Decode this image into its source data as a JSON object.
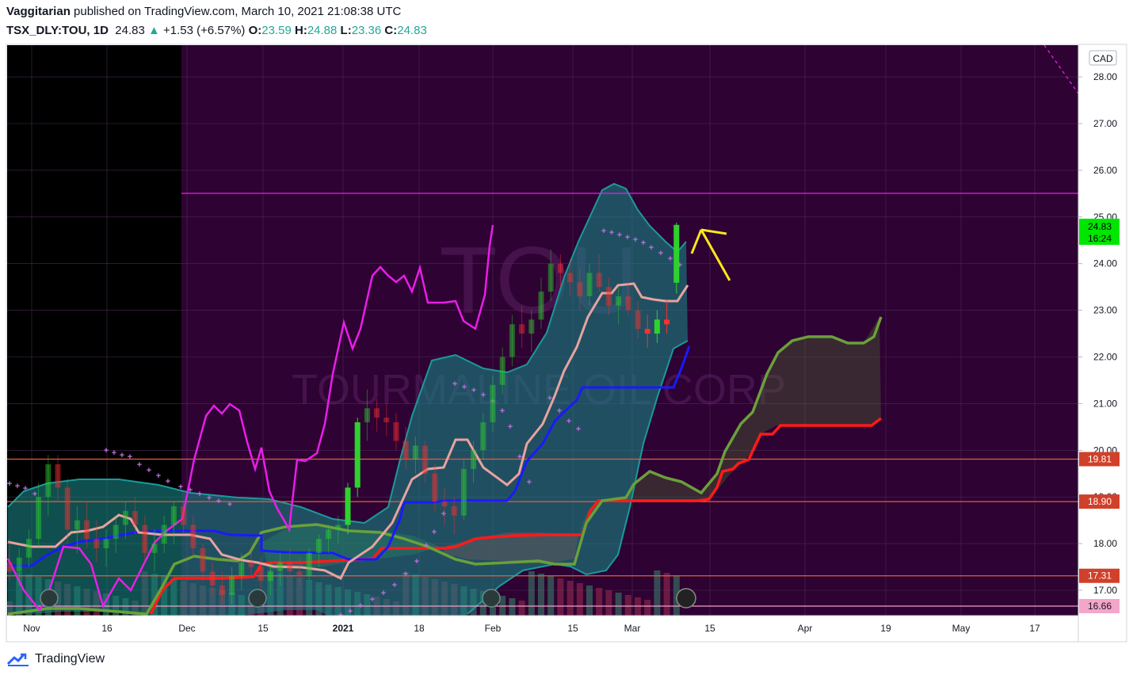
{
  "header": {
    "author": "Vaggitarian",
    "published_text": "published on TradingView.com, March 10, 2021 21:08:38 UTC",
    "symbol": "TSX_DLY:TOU, 1D",
    "last": "24.83",
    "change_arrow": "▲",
    "change": "+1.53 (+6.57%)",
    "open_label": "O:",
    "open": "23.59",
    "high_label": "H:",
    "high": "24.88",
    "low_label": "L:",
    "low": "23.36",
    "close_label": "C:",
    "close": "24.83"
  },
  "footer": {
    "brand": "TradingView"
  },
  "watermark": {
    "ticker": "TOU",
    "name": "TOURMALINE OIL CORP"
  },
  "colors": {
    "background_left": "#000000",
    "background_main": "#2e0233",
    "cloud_teal": "#1a7f80",
    "tenkan_pink": "#e8a39f",
    "kijun_blue": "#1a1aff",
    "chikou_magenta": "#e81ee8",
    "span_a_green": "#6aa03a",
    "span_b_red": "#ff1a1a",
    "psar": "#c070e0",
    "up_candle": "#2ed22e",
    "down_candle": "#ff3030",
    "annotation_arrow": "#ffe81a"
  },
  "chart_data": {
    "type": "candlestick",
    "currency": "CAD",
    "x_ticks": [
      "Nov",
      "16",
      "Dec",
      "15",
      "2021",
      "18",
      "Feb",
      "15",
      "Mar",
      "15",
      "Apr",
      "19",
      "May",
      "17"
    ],
    "y_ticks": [
      "17.00",
      "18.00",
      "19.00",
      "20.00",
      "21.00",
      "22.00",
      "23.00",
      "24.00",
      "25.00",
      "26.00",
      "27.00",
      "28.00"
    ],
    "ylim": [
      16.55,
      28.75
    ],
    "price_badge": {
      "price": "24.83",
      "countdown": "16:24"
    },
    "horizontal_levels": [
      {
        "label": "19.81",
        "value": 19.81
      },
      {
        "label": "18.90",
        "value": 18.9
      },
      {
        "label": "17.31",
        "value": 17.31
      },
      {
        "label": "16.66",
        "value": 16.66
      }
    ],
    "resistance_line": 25.5,
    "candles": [
      {
        "d": 0,
        "o": 17.6,
        "h": 18.1,
        "l": 17.2,
        "c": 17.4
      },
      {
        "d": 1,
        "o": 17.4,
        "h": 17.9,
        "l": 17.1,
        "c": 17.7
      },
      {
        "d": 2,
        "o": 17.7,
        "h": 18.3,
        "l": 17.5,
        "c": 18.1
      },
      {
        "d": 3,
        "o": 18.1,
        "h": 19.3,
        "l": 17.9,
        "c": 19.0
      },
      {
        "d": 4,
        "o": 19.0,
        "h": 19.9,
        "l": 18.6,
        "c": 19.7
      },
      {
        "d": 5,
        "o": 19.7,
        "h": 19.9,
        "l": 18.9,
        "c": 19.2
      },
      {
        "d": 6,
        "o": 19.2,
        "h": 19.4,
        "l": 18.0,
        "c": 18.3
      },
      {
        "d": 7,
        "o": 18.3,
        "h": 18.8,
        "l": 17.8,
        "c": 18.5
      },
      {
        "d": 8,
        "o": 18.5,
        "h": 18.9,
        "l": 17.9,
        "c": 18.1
      },
      {
        "d": 9,
        "o": 18.1,
        "h": 18.5,
        "l": 17.6,
        "c": 17.9
      },
      {
        "d": 10,
        "o": 17.9,
        "h": 18.3,
        "l": 17.5,
        "c": 18.1
      },
      {
        "d": 11,
        "o": 18.1,
        "h": 18.6,
        "l": 17.8,
        "c": 18.4
      },
      {
        "d": 12,
        "o": 18.4,
        "h": 18.9,
        "l": 18.1,
        "c": 18.7
      },
      {
        "d": 13,
        "o": 18.7,
        "h": 19.0,
        "l": 18.2,
        "c": 18.4
      },
      {
        "d": 14,
        "o": 18.4,
        "h": 18.6,
        "l": 17.6,
        "c": 17.8
      },
      {
        "d": 15,
        "o": 17.8,
        "h": 18.3,
        "l": 17.4,
        "c": 18.0
      },
      {
        "d": 16,
        "o": 18.0,
        "h": 18.6,
        "l": 17.8,
        "c": 18.4
      },
      {
        "d": 17,
        "o": 18.4,
        "h": 18.9,
        "l": 18.0,
        "c": 18.8
      },
      {
        "d": 18,
        "o": 18.8,
        "h": 18.9,
        "l": 18.2,
        "c": 18.4
      },
      {
        "d": 19,
        "o": 18.4,
        "h": 18.6,
        "l": 17.7,
        "c": 17.9
      },
      {
        "d": 20,
        "o": 17.9,
        "h": 18.0,
        "l": 17.2,
        "c": 17.4
      },
      {
        "d": 21,
        "o": 17.4,
        "h": 17.6,
        "l": 16.9,
        "c": 17.1
      },
      {
        "d": 22,
        "o": 17.1,
        "h": 17.4,
        "l": 16.7,
        "c": 16.9
      },
      {
        "d": 23,
        "o": 16.9,
        "h": 17.5,
        "l": 16.7,
        "c": 17.3
      },
      {
        "d": 24,
        "o": 17.3,
        "h": 17.8,
        "l": 17.0,
        "c": 17.6
      },
      {
        "d": 25,
        "o": 17.6,
        "h": 17.9,
        "l": 17.3,
        "c": 17.5
      },
      {
        "d": 26,
        "o": 17.5,
        "h": 17.7,
        "l": 17.0,
        "c": 17.2
      },
      {
        "d": 27,
        "o": 17.2,
        "h": 17.6,
        "l": 16.9,
        "c": 17.4
      },
      {
        "d": 28,
        "o": 17.4,
        "h": 17.8,
        "l": 17.1,
        "c": 17.6
      },
      {
        "d": 29,
        "o": 17.6,
        "h": 17.9,
        "l": 17.3,
        "c": 17.4
      },
      {
        "d": 30,
        "o": 17.4,
        "h": 17.7,
        "l": 17.1,
        "c": 17.3
      },
      {
        "d": 31,
        "o": 17.3,
        "h": 17.9,
        "l": 17.2,
        "c": 17.8
      },
      {
        "d": 32,
        "o": 17.8,
        "h": 18.2,
        "l": 17.5,
        "c": 18.1
      },
      {
        "d": 33,
        "o": 18.1,
        "h": 18.4,
        "l": 17.8,
        "c": 18.3
      },
      {
        "d": 34,
        "o": 18.3,
        "h": 18.6,
        "l": 18.0,
        "c": 18.4
      },
      {
        "d": 35,
        "o": 18.4,
        "h": 19.3,
        "l": 18.2,
        "c": 19.2
      },
      {
        "d": 36,
        "o": 19.2,
        "h": 20.7,
        "l": 19.0,
        "c": 20.6
      },
      {
        "d": 37,
        "o": 20.6,
        "h": 21.3,
        "l": 20.2,
        "c": 20.9
      },
      {
        "d": 38,
        "o": 20.9,
        "h": 21.1,
        "l": 20.4,
        "c": 20.7
      },
      {
        "d": 39,
        "o": 20.7,
        "h": 21.0,
        "l": 20.3,
        "c": 20.6
      },
      {
        "d": 40,
        "o": 20.6,
        "h": 20.8,
        "l": 20.0,
        "c": 20.2
      },
      {
        "d": 41,
        "o": 20.2,
        "h": 20.5,
        "l": 19.6,
        "c": 19.8
      },
      {
        "d": 42,
        "o": 19.8,
        "h": 20.3,
        "l": 19.5,
        "c": 20.1
      },
      {
        "d": 43,
        "o": 20.1,
        "h": 20.2,
        "l": 19.3,
        "c": 19.5
      },
      {
        "d": 44,
        "o": 19.5,
        "h": 19.7,
        "l": 18.7,
        "c": 18.9
      },
      {
        "d": 45,
        "o": 18.9,
        "h": 19.2,
        "l": 18.4,
        "c": 18.8
      },
      {
        "d": 46,
        "o": 18.8,
        "h": 19.0,
        "l": 18.2,
        "c": 18.6
      },
      {
        "d": 47,
        "o": 18.6,
        "h": 19.8,
        "l": 18.5,
        "c": 19.6
      },
      {
        "d": 48,
        "o": 19.6,
        "h": 20.2,
        "l": 19.3,
        "c": 20.0
      },
      {
        "d": 49,
        "o": 20.0,
        "h": 20.8,
        "l": 19.8,
        "c": 20.6
      },
      {
        "d": 50,
        "o": 20.6,
        "h": 21.6,
        "l": 20.4,
        "c": 21.4
      },
      {
        "d": 51,
        "o": 21.4,
        "h": 22.2,
        "l": 21.2,
        "c": 22.0
      },
      {
        "d": 52,
        "o": 22.0,
        "h": 22.9,
        "l": 21.8,
        "c": 22.7
      },
      {
        "d": 53,
        "o": 22.7,
        "h": 23.1,
        "l": 22.2,
        "c": 22.5
      },
      {
        "d": 54,
        "o": 22.5,
        "h": 23.0,
        "l": 22.1,
        "c": 22.8
      },
      {
        "d": 55,
        "o": 22.8,
        "h": 23.7,
        "l": 22.6,
        "c": 23.4
      },
      {
        "d": 56,
        "o": 23.4,
        "h": 24.3,
        "l": 23.2,
        "c": 24.0
      },
      {
        "d": 57,
        "o": 24.0,
        "h": 24.2,
        "l": 23.5,
        "c": 23.8
      },
      {
        "d": 58,
        "o": 23.8,
        "h": 24.1,
        "l": 23.3,
        "c": 23.6
      },
      {
        "d": 59,
        "o": 23.6,
        "h": 23.9,
        "l": 23.0,
        "c": 23.3
      },
      {
        "d": 60,
        "o": 23.3,
        "h": 24.0,
        "l": 23.1,
        "c": 23.8
      },
      {
        "d": 61,
        "o": 23.8,
        "h": 24.2,
        "l": 23.4,
        "c": 23.5
      },
      {
        "d": 62,
        "o": 23.5,
        "h": 23.7,
        "l": 22.9,
        "c": 23.1
      },
      {
        "d": 63,
        "o": 23.1,
        "h": 23.5,
        "l": 22.7,
        "c": 23.3
      },
      {
        "d": 64,
        "o": 23.3,
        "h": 23.6,
        "l": 22.9,
        "c": 23.0
      },
      {
        "d": 65,
        "o": 23.0,
        "h": 23.2,
        "l": 22.4,
        "c": 22.6
      },
      {
        "d": 66,
        "o": 22.6,
        "h": 22.9,
        "l": 22.2,
        "c": 22.5
      },
      {
        "d": 67,
        "o": 22.5,
        "h": 23.0,
        "l": 22.3,
        "c": 22.8
      },
      {
        "d": 68,
        "o": 22.8,
        "h": 23.2,
        "l": 22.5,
        "c": 22.7
      },
      {
        "d": 69,
        "o": 23.59,
        "h": 24.88,
        "l": 23.36,
        "c": 24.83
      }
    ]
  }
}
